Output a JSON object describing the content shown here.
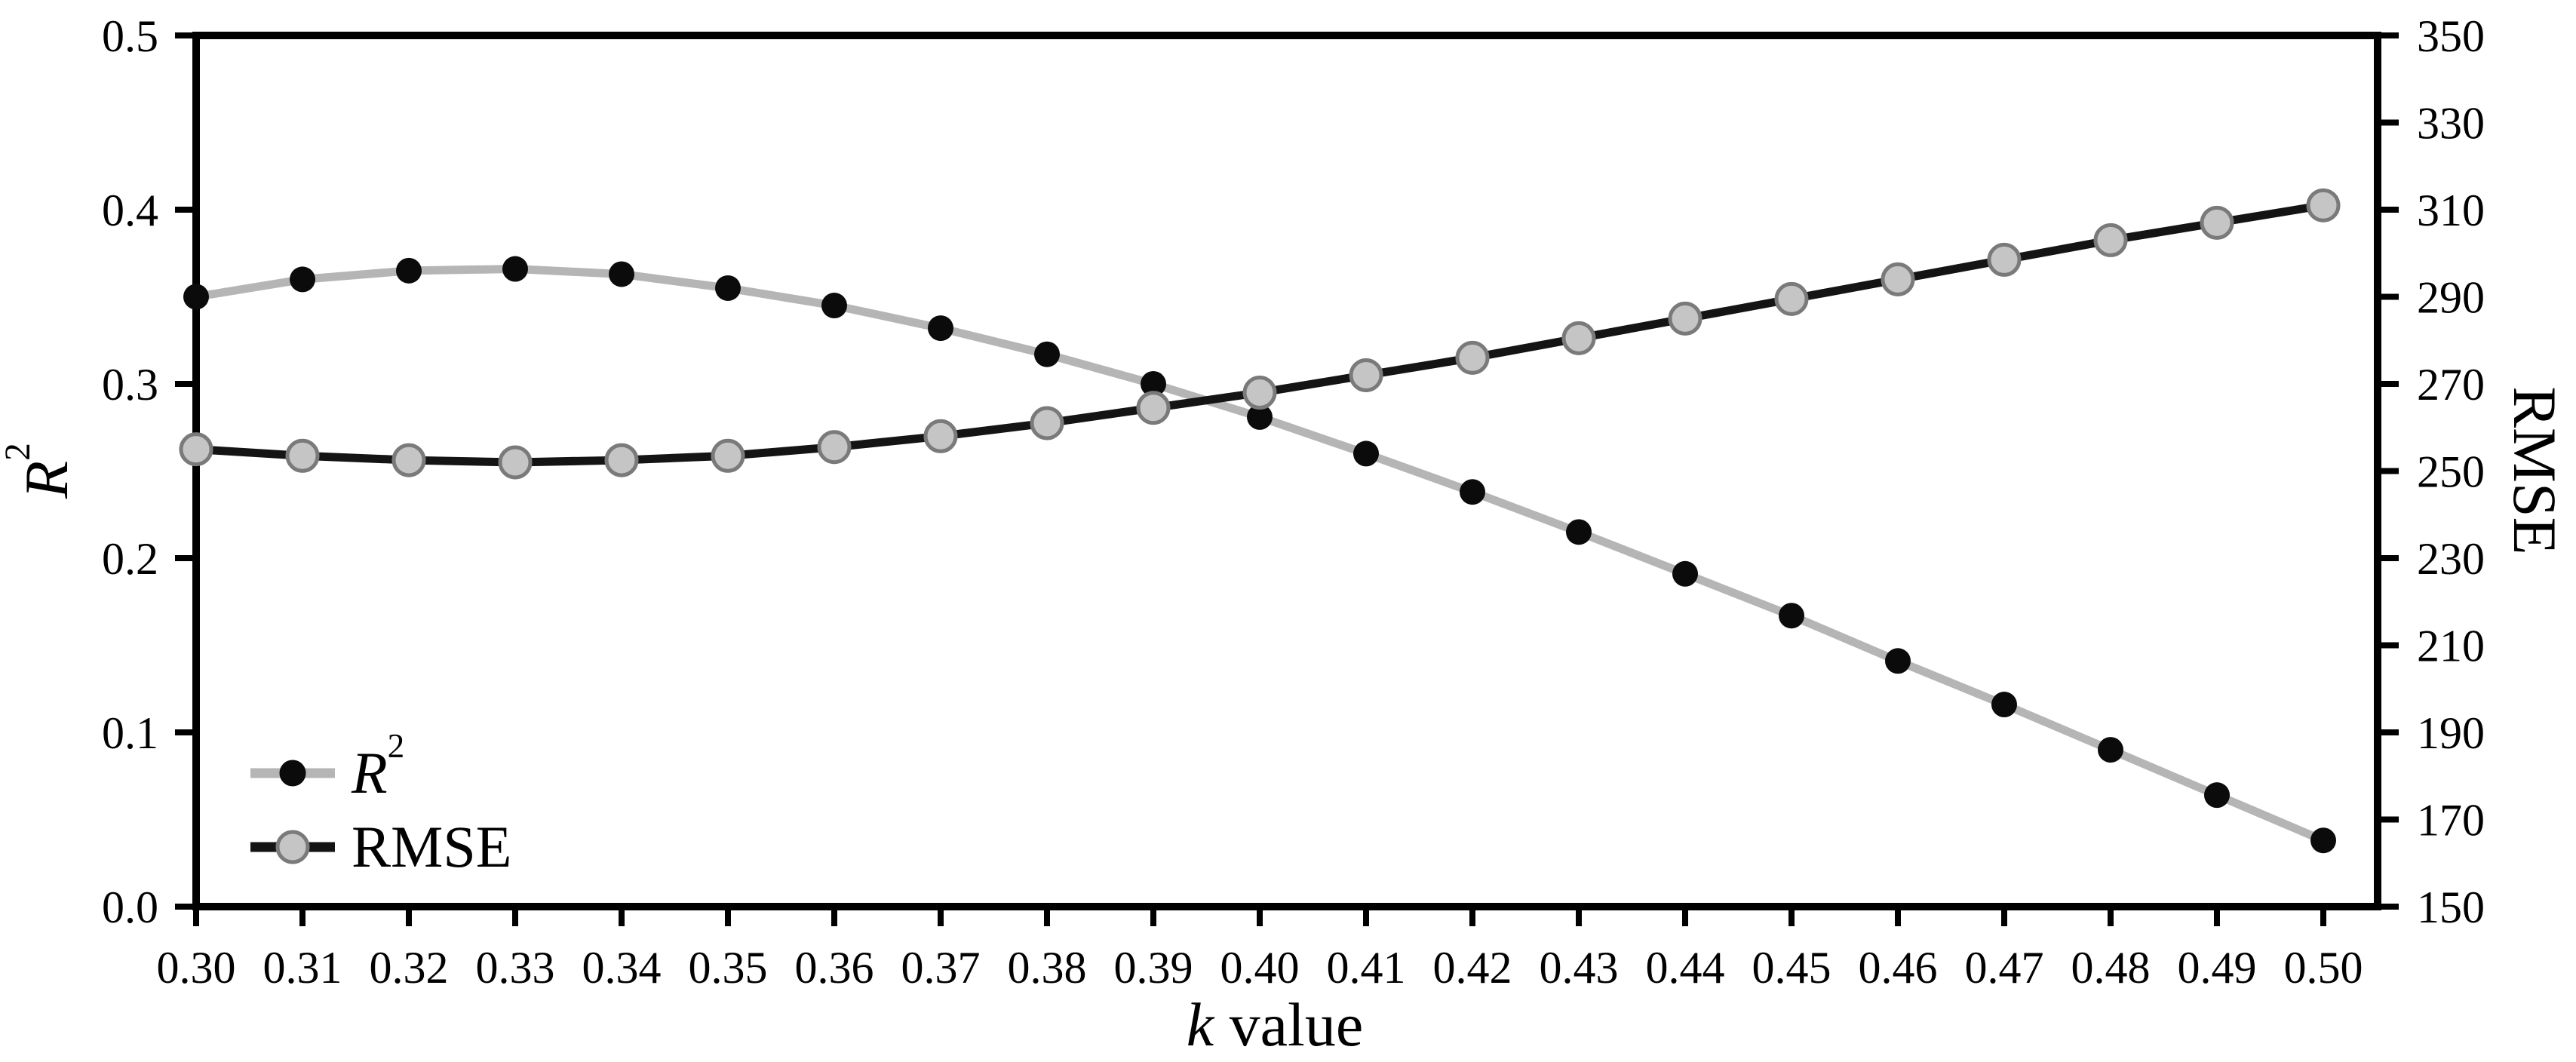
{
  "figure": {
    "x_axis_title": {
      "italic": "k",
      "rest": " value"
    },
    "left_axis_title": {
      "base": "R",
      "sup": "2"
    },
    "right_axis_title": "RMSE",
    "legend_items": [
      {
        "id": "r2",
        "label_base": "R",
        "label_sup": "2"
      },
      {
        "id": "rmse",
        "label": "RMSE"
      }
    ]
  },
  "chart_data": {
    "type": "line",
    "title": "",
    "xlabel": "k value",
    "ylabel_left": "R2",
    "ylabel_right": "RMSE",
    "grid": false,
    "legend_position": "inside bottom-left",
    "background": "#ffffff",
    "axis_color": "#000000",
    "x": [
      0.3,
      0.31,
      0.32,
      0.33,
      0.34,
      0.35,
      0.36,
      0.37,
      0.38,
      0.39,
      0.4,
      0.41,
      0.42,
      0.43,
      0.44,
      0.45,
      0.46,
      0.47,
      0.48,
      0.49,
      0.5
    ],
    "x_tick_labels": [
      "0.30",
      "0.31",
      "0.32",
      "0.33",
      "0.34",
      "0.35",
      "0.36",
      "0.37",
      "0.38",
      "0.39",
      "0.40",
      "0.41",
      "0.42",
      "0.43",
      "0.44",
      "0.45",
      "0.46",
      "0.47",
      "0.48",
      "0.49",
      "0.50"
    ],
    "left_axis": {
      "min": 0.0,
      "max": 0.5,
      "ticks": [
        0.0,
        0.1,
        0.2,
        0.3,
        0.4,
        0.5
      ],
      "tick_labels": [
        "0.0",
        "0.1",
        "0.2",
        "0.3",
        "0.4",
        "0.5"
      ]
    },
    "right_axis": {
      "min": 150,
      "max": 350,
      "ticks": [
        150,
        170,
        190,
        210,
        230,
        250,
        270,
        290,
        310,
        330,
        350
      ],
      "tick_labels": [
        "150",
        "170",
        "190",
        "210",
        "230",
        "250",
        "270",
        "290",
        "310",
        "330",
        "350"
      ]
    },
    "series": [
      {
        "name": "R2",
        "axis": "left",
        "line_color": "#b5b5b5",
        "marker_fill": "#0b0b0b",
        "marker_outline": "#0b0b0b",
        "marker_radius": 17,
        "values": [
          0.35,
          0.36,
          0.365,
          0.366,
          0.363,
          0.355,
          0.345,
          0.332,
          0.317,
          0.3,
          0.281,
          0.26,
          0.238,
          0.215,
          0.191,
          0.167,
          0.141,
          0.116,
          0.09,
          0.064,
          0.038
        ]
      },
      {
        "name": "RMSE",
        "axis": "right",
        "line_color": "#141414",
        "marker_fill": "#c5c5c5",
        "marker_outline": "#7a7a7a",
        "marker_radius": 20,
        "values": [
          255,
          253.5,
          252.5,
          252,
          252.5,
          253.5,
          255.5,
          258,
          261,
          264.5,
          268,
          272,
          276,
          280.5,
          285,
          289.5,
          294,
          298.5,
          303,
          307,
          311
        ]
      }
    ]
  }
}
